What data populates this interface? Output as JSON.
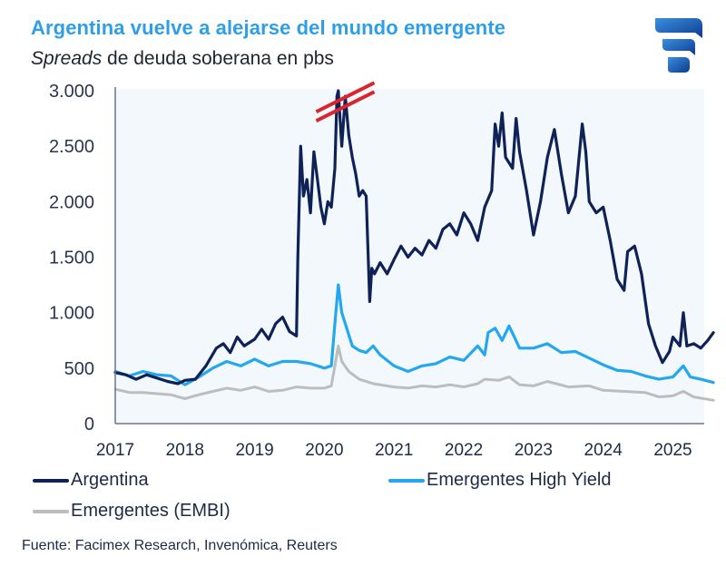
{
  "header": {
    "title": "Argentina vuelve a alejarse del mundo emergente",
    "subtitle_italic": "Spreads",
    "subtitle_rest": " de deuda soberana en pbs",
    "logo_icon": "facimex-logo-icon"
  },
  "source": "Fuente: Facimex Research, Invenómica, Reuters",
  "chart_data": {
    "type": "line",
    "title": "Argentina vuelve a alejarse del mundo emergente",
    "subtitle": "Spreads de deuda soberana en pbs",
    "xlabel": "",
    "ylabel": "pbs",
    "xlim": [
      2017,
      2025.9
    ],
    "ylim": [
      0,
      3000
    ],
    "yticks": [
      0,
      500,
      1000,
      1500,
      2000,
      2500,
      3000
    ],
    "ytick_labels": [
      "0",
      "500",
      "1.000",
      "1.500",
      "2.000",
      "2.500",
      "3.000"
    ],
    "xticks": [
      2017,
      2018,
      2019,
      2020,
      2021,
      2022,
      2023,
      2024,
      2025
    ],
    "xtick_labels": [
      "2017",
      "2018",
      "2019",
      "2020",
      "2021",
      "2022",
      "2023",
      "2024",
      "2025"
    ],
    "grid": false,
    "legend_position": "bottom",
    "axis_break_annotation": {
      "x": 2020.3,
      "y": 2900,
      "color": "#d9252b",
      "meaning": "values truncated above axis max"
    },
    "colors": {
      "Argentina": "#0f2257",
      "Emergentes High Yield": "#24a7ef",
      "Emergentes (EMBI)": "#bdbdbd"
    },
    "series": [
      {
        "name": "Argentina",
        "x": [
          2017.0,
          2017.15,
          2017.3,
          2017.45,
          2017.6,
          2017.75,
          2017.9,
          2018.0,
          2018.15,
          2018.3,
          2018.45,
          2018.55,
          2018.65,
          2018.75,
          2018.85,
          2019.0,
          2019.1,
          2019.2,
          2019.3,
          2019.4,
          2019.5,
          2019.6,
          2019.62,
          2019.66,
          2019.7,
          2019.75,
          2019.8,
          2019.85,
          2019.9,
          2019.95,
          2020.0,
          2020.05,
          2020.1,
          2020.15,
          2020.18,
          2020.2,
          2020.25,
          2020.3,
          2020.35,
          2020.4,
          2020.45,
          2020.5,
          2020.55,
          2020.6,
          2020.65,
          2020.68,
          2020.72,
          2020.8,
          2020.9,
          2021.0,
          2021.1,
          2021.2,
          2021.3,
          2021.4,
          2021.5,
          2021.6,
          2021.7,
          2021.8,
          2021.9,
          2022.0,
          2022.1,
          2022.2,
          2022.3,
          2022.4,
          2022.45,
          2022.5,
          2022.55,
          2022.6,
          2022.7,
          2022.75,
          2022.8,
          2022.9,
          2023.0,
          2023.1,
          2023.2,
          2023.3,
          2023.4,
          2023.5,
          2023.6,
          2023.7,
          2023.75,
          2023.8,
          2023.9,
          2024.0,
          2024.1,
          2024.2,
          2024.3,
          2024.35,
          2024.45,
          2024.55,
          2024.65,
          2024.75,
          2024.85,
          2024.95,
          2025.0,
          2025.1,
          2025.15,
          2025.2,
          2025.3,
          2025.4,
          2025.5,
          2025.58
        ],
        "values": [
          460,
          440,
          400,
          440,
          410,
          380,
          360,
          390,
          400,
          520,
          680,
          720,
          640,
          780,
          700,
          760,
          850,
          760,
          900,
          960,
          830,
          790,
          1500,
          2500,
          2050,
          2200,
          1900,
          2450,
          2200,
          1950,
          1800,
          2000,
          1950,
          2300,
          2950,
          3000,
          2500,
          2950,
          2600,
          2400,
          2250,
          2050,
          2100,
          2050,
          1100,
          1400,
          1350,
          1450,
          1350,
          1480,
          1600,
          1500,
          1580,
          1520,
          1650,
          1580,
          1750,
          1800,
          1700,
          1900,
          1800,
          1650,
          1950,
          2100,
          2700,
          2500,
          2800,
          2400,
          2300,
          2750,
          2450,
          2100,
          1700,
          2000,
          2400,
          2650,
          2250,
          1900,
          2050,
          2700,
          2450,
          2000,
          1900,
          1950,
          1650,
          1300,
          1200,
          1550,
          1600,
          1350,
          900,
          700,
          550,
          650,
          780,
          700,
          1000,
          700,
          720,
          680,
          750,
          820
        ]
      },
      {
        "name": "Emergentes High Yield",
        "x": [
          2017.0,
          2017.2,
          2017.4,
          2017.6,
          2017.8,
          2018.0,
          2018.2,
          2018.4,
          2018.6,
          2018.8,
          2019.0,
          2019.2,
          2019.4,
          2019.6,
          2019.8,
          2020.0,
          2020.1,
          2020.15,
          2020.2,
          2020.25,
          2020.3,
          2020.4,
          2020.5,
          2020.6,
          2020.7,
          2020.8,
          2021.0,
          2021.2,
          2021.4,
          2021.6,
          2021.8,
          2022.0,
          2022.2,
          2022.3,
          2022.35,
          2022.45,
          2022.55,
          2022.65,
          2022.8,
          2023.0,
          2023.2,
          2023.4,
          2023.6,
          2023.8,
          2024.0,
          2024.2,
          2024.4,
          2024.6,
          2024.8,
          2025.0,
          2025.15,
          2025.25,
          2025.4,
          2025.58
        ],
        "values": [
          470,
          430,
          470,
          440,
          430,
          350,
          420,
          500,
          560,
          520,
          580,
          520,
          560,
          560,
          540,
          500,
          520,
          900,
          1250,
          1000,
          900,
          700,
          660,
          640,
          700,
          620,
          520,
          470,
          520,
          540,
          600,
          570,
          700,
          620,
          820,
          860,
          750,
          880,
          680,
          680,
          720,
          640,
          650,
          590,
          530,
          480,
          470,
          430,
          400,
          420,
          520,
          420,
          400,
          370
        ]
      },
      {
        "name": "Emergentes (EMBI)",
        "x": [
          2017.0,
          2017.2,
          2017.4,
          2017.6,
          2017.8,
          2018.0,
          2018.2,
          2018.4,
          2018.6,
          2018.8,
          2019.0,
          2019.2,
          2019.4,
          2019.6,
          2019.8,
          2020.0,
          2020.1,
          2020.15,
          2020.2,
          2020.25,
          2020.35,
          2020.5,
          2020.7,
          2021.0,
          2021.2,
          2021.4,
          2021.6,
          2021.8,
          2022.0,
          2022.2,
          2022.3,
          2022.5,
          2022.65,
          2022.8,
          2023.0,
          2023.2,
          2023.5,
          2023.8,
          2024.0,
          2024.3,
          2024.6,
          2024.8,
          2025.0,
          2025.15,
          2025.3,
          2025.58
        ],
        "values": [
          310,
          280,
          280,
          270,
          260,
          225,
          260,
          290,
          320,
          300,
          330,
          290,
          300,
          330,
          320,
          320,
          340,
          520,
          700,
          560,
          470,
          400,
          360,
          330,
          320,
          340,
          330,
          350,
          330,
          360,
          400,
          390,
          420,
          350,
          340,
          380,
          330,
          340,
          300,
          290,
          280,
          240,
          250,
          290,
          240,
          210
        ]
      }
    ]
  }
}
